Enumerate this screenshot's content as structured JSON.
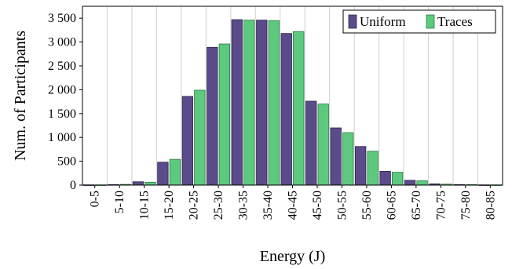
{
  "chart_data": {
    "type": "bar",
    "xlabel": "Energy (J)",
    "ylabel": "Num. of Participants",
    "ylim": [
      0,
      3750
    ],
    "yticks": [
      0,
      500,
      1000,
      1500,
      2000,
      2500,
      3000,
      3500
    ],
    "ytick_labels": [
      "0",
      "500",
      "1 000",
      "1 500",
      "2 000",
      "2 500",
      "3 000",
      "3 500"
    ],
    "categories": [
      "0-5",
      "5-10",
      "10-15",
      "15-20",
      "20-25",
      "25-30",
      "30-35",
      "35-40",
      "40-45",
      "45-50",
      "50-55",
      "55-60",
      "60-65",
      "65-70",
      "70-75",
      "75-80",
      "80-85"
    ],
    "series": [
      {
        "name": "Uniform",
        "color": "#5b4b8a",
        "values": [
          5,
          10,
          70,
          480,
          1860,
          2890,
          3470,
          3460,
          3180,
          1760,
          1200,
          810,
          290,
          100,
          25,
          10,
          5
        ]
      },
      {
        "name": "Traces",
        "color": "#5cc97e",
        "values": [
          5,
          15,
          60,
          540,
          1990,
          2960,
          3460,
          3450,
          3220,
          1700,
          1100,
          710,
          270,
          90,
          20,
          10,
          5
        ]
      }
    ],
    "grid": "vertical",
    "legend_position": "top-right"
  }
}
